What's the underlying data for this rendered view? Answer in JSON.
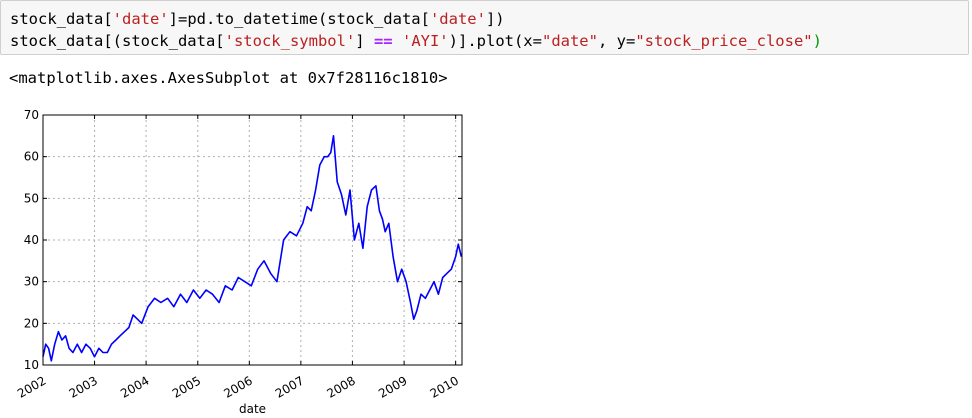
{
  "cell": {
    "code_line_1": [
      {
        "t": "stock_data[",
        "c": ""
      },
      {
        "t": "'date'",
        "c": "str"
      },
      {
        "t": "]=pd.to_datetime(stock_data[",
        "c": ""
      },
      {
        "t": "'date'",
        "c": "str"
      },
      {
        "t": "])",
        "c": ""
      }
    ],
    "code_line_2": [
      {
        "t": "stock_data[(stock_data[",
        "c": ""
      },
      {
        "t": "'stock_symbol'",
        "c": "str"
      },
      {
        "t": "] ",
        "c": ""
      },
      {
        "t": "==",
        "c": "op"
      },
      {
        "t": " ",
        "c": ""
      },
      {
        "t": "'AYI'",
        "c": "str"
      },
      {
        "t": ")].plot(x=",
        "c": ""
      },
      {
        "t": "\"date\"",
        "c": "str"
      },
      {
        "t": ", y=",
        "c": ""
      },
      {
        "t": "\"stock_price_close\"",
        "c": "str"
      },
      {
        "t": ")",
        "c": "br"
      }
    ],
    "output_text": "<matplotlib.axes.AxesSubplot at 0x7f28116c1810>"
  },
  "chart_data": {
    "type": "line",
    "xlabel": "date",
    "ylabel": "",
    "xlim": [
      "2002-01-01",
      "2010-02-15"
    ],
    "ylim": [
      10,
      70
    ],
    "x_ticks": [
      "2002",
      "2003",
      "2004",
      "2005",
      "2006",
      "2007",
      "2008",
      "2009",
      "2010"
    ],
    "y_ticks": [
      10,
      20,
      30,
      40,
      50,
      60,
      70
    ],
    "grid": true,
    "series": [
      {
        "color": "#0000ff",
        "x": [
          "2002-01-01",
          "2002-01-20",
          "2002-02-10",
          "2002-03-01",
          "2002-03-25",
          "2002-04-20",
          "2002-05-15",
          "2002-06-10",
          "2002-07-05",
          "2002-08-01",
          "2002-09-01",
          "2002-10-01",
          "2002-11-01",
          "2002-12-01",
          "2003-01-01",
          "2003-02-01",
          "2003-03-01",
          "2003-04-01",
          "2003-05-01",
          "2003-06-01",
          "2003-07-01",
          "2003-08-01",
          "2003-09-01",
          "2003-10-01",
          "2003-11-01",
          "2003-12-01",
          "2004-01-15",
          "2004-03-01",
          "2004-04-15",
          "2004-06-01",
          "2004-07-15",
          "2004-09-01",
          "2004-10-15",
          "2004-12-01",
          "2005-01-15",
          "2005-03-01",
          "2005-04-15",
          "2005-06-01",
          "2005-07-15",
          "2005-09-01",
          "2005-10-15",
          "2005-12-01",
          "2006-01-15",
          "2006-03-01",
          "2006-04-15",
          "2006-06-01",
          "2006-07-15",
          "2006-09-01",
          "2006-10-15",
          "2006-12-01",
          "2007-01-15",
          "2007-02-15",
          "2007-03-15",
          "2007-04-15",
          "2007-05-15",
          "2007-06-15",
          "2007-07-10",
          "2007-08-01",
          "2007-08-20",
          "2007-09-15",
          "2007-10-15",
          "2007-11-15",
          "2007-12-15",
          "2008-01-15",
          "2008-02-15",
          "2008-03-15",
          "2008-04-15",
          "2008-05-15",
          "2008-06-15",
          "2008-07-10",
          "2008-08-01",
          "2008-08-20",
          "2008-09-15",
          "2008-10-15",
          "2008-11-15",
          "2008-12-15",
          "2009-01-15",
          "2009-02-15",
          "2009-03-10",
          "2009-04-01",
          "2009-05-01",
          "2009-06-01",
          "2009-07-01",
          "2009-08-01",
          "2009-09-01",
          "2009-10-01",
          "2009-11-01",
          "2009-12-01",
          "2010-01-01",
          "2010-01-20",
          "2010-02-10"
        ],
        "y": [
          12,
          15,
          14,
          11,
          15,
          18,
          16,
          17,
          14,
          13,
          15,
          13,
          15,
          14,
          12,
          14,
          13,
          13,
          15,
          16,
          17,
          18,
          19,
          22,
          21,
          20,
          24,
          26,
          25,
          26,
          24,
          27,
          25,
          28,
          26,
          28,
          27,
          25,
          29,
          28,
          31,
          30,
          29,
          33,
          35,
          32,
          30,
          40,
          42,
          41,
          44,
          48,
          47,
          52,
          58,
          60,
          60,
          61,
          65,
          54,
          51,
          46,
          52,
          40,
          44,
          38,
          48,
          52,
          53,
          47,
          45,
          42,
          44,
          36,
          30,
          33,
          30,
          25,
          21,
          23,
          27,
          26,
          28,
          30,
          27,
          31,
          32,
          33,
          36,
          39,
          36
        ]
      }
    ]
  }
}
